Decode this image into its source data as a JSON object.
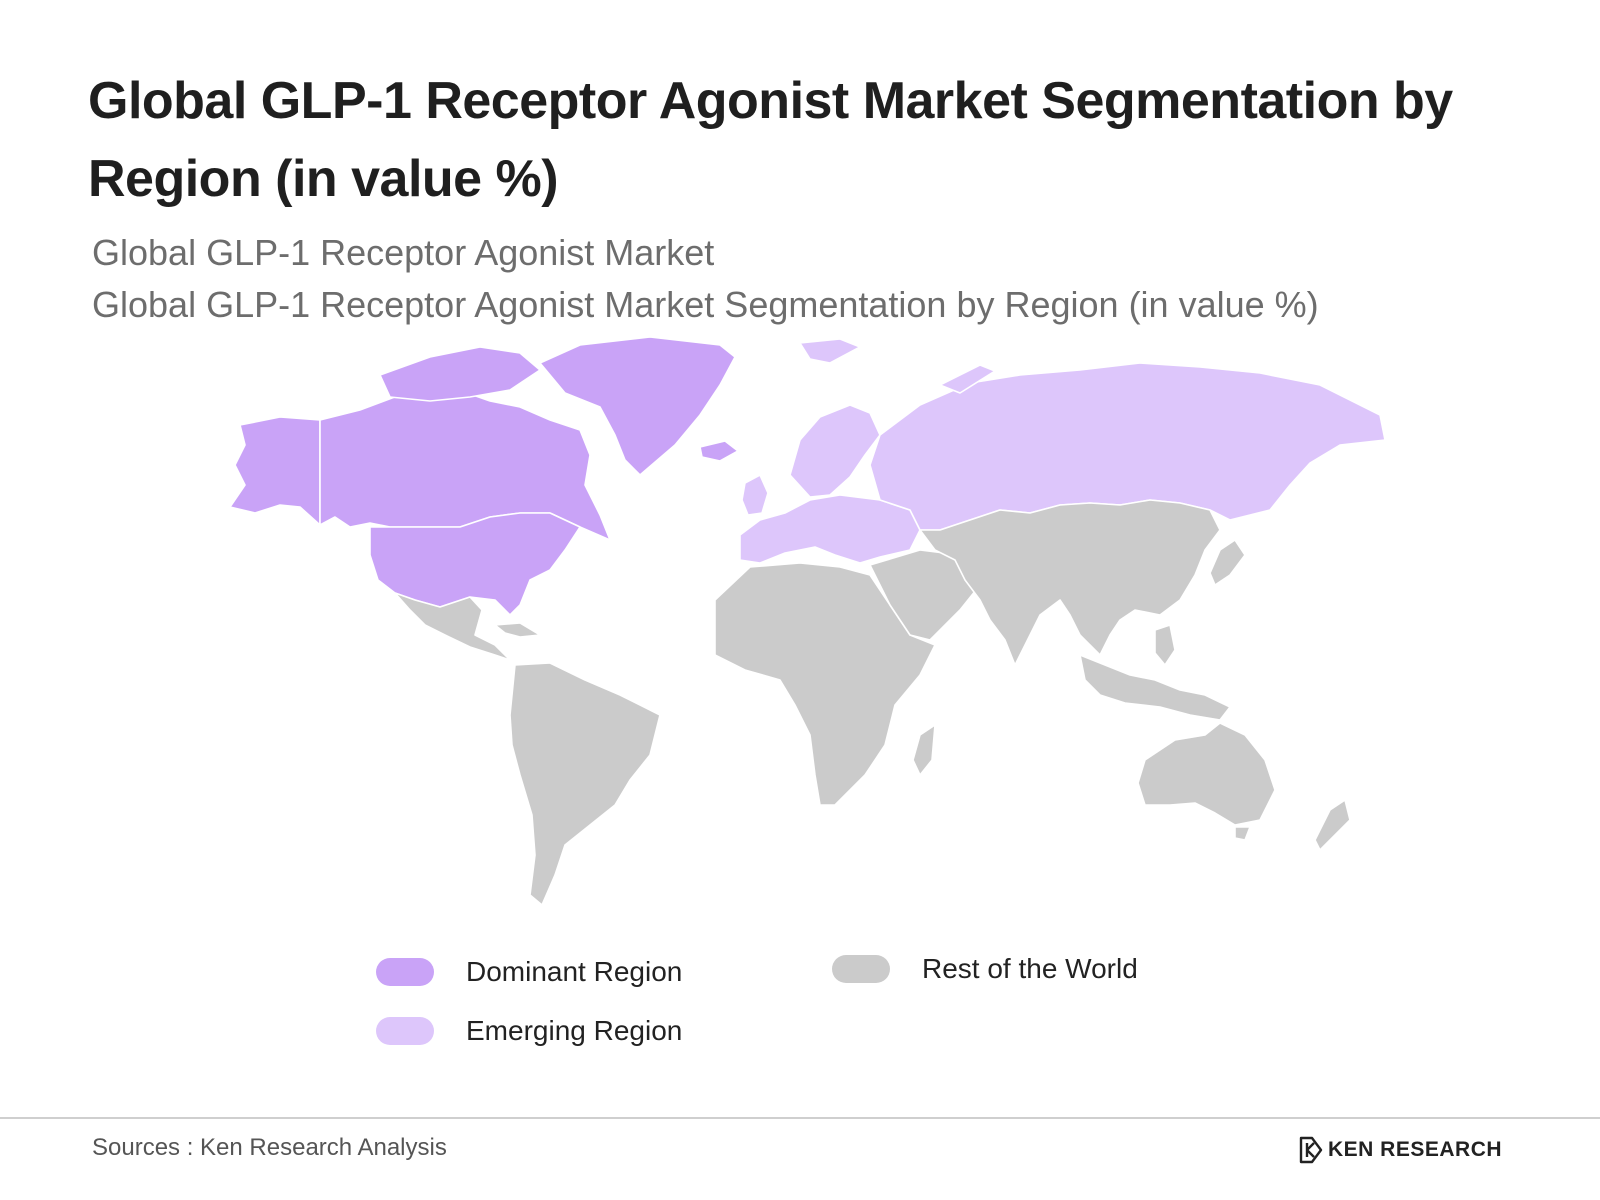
{
  "title": "Global GLP-1 Receptor Agonist Market Segmentation by Region (in value %)",
  "subtitle_1": "Global GLP-1 Receptor Agonist Market",
  "subtitle_2": "Global GLP-1 Receptor Agonist Market Segmentation by Region (in value %)",
  "colors": {
    "dominant": "#c9a3f7",
    "emerging": "#ddc6fb",
    "rest": "#cbcbcb",
    "border": "#ffffff"
  },
  "regions": {
    "dominant": [
      "North America",
      "Greenland"
    ],
    "emerging": [
      "Europe",
      "Russia"
    ],
    "rest": [
      "Latin America",
      "Africa",
      "Middle East",
      "Asia",
      "Australia",
      "New Zealand"
    ]
  },
  "legend": {
    "dominant_label": "Dominant Region",
    "emerging_label": "Emerging Region",
    "rest_label": "Rest of the World"
  },
  "footer": {
    "source": "Sources : Ken Research Analysis",
    "brand_name": "KEN RESEARCH",
    "brand_icon": "ken-research-logo-icon"
  }
}
